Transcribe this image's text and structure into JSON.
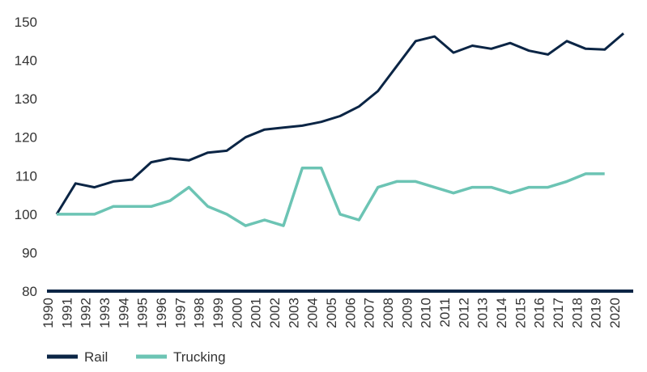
{
  "chart_data": {
    "type": "line",
    "x": [
      "1990",
      "1991",
      "1992",
      "1993",
      "1994",
      "1995",
      "1996",
      "1997",
      "1998",
      "1999",
      "2000",
      "2001",
      "2002",
      "2003",
      "2004",
      "2005",
      "2006",
      "2007",
      "2008",
      "2009",
      "2010",
      "2011",
      "2012",
      "2013",
      "2014",
      "2015",
      "2016",
      "2017",
      "2018",
      "2019",
      "2020"
    ],
    "ylim": [
      80,
      150
    ],
    "yticks": [
      80,
      90,
      100,
      110,
      120,
      130,
      140,
      150
    ],
    "grid": false,
    "legend_position": "bottom-left",
    "series": [
      {
        "name": "Rail",
        "color": "#0b2545",
        "values": [
          100,
          108,
          107,
          108.5,
          109,
          113.5,
          114.5,
          114,
          116,
          116.5,
          120,
          122,
          122.5,
          123,
          124,
          125.5,
          128,
          132,
          138.5,
          145,
          146.2,
          142,
          143.8,
          143,
          144.5,
          142.5,
          141.5,
          145,
          143,
          142.8,
          147
        ]
      },
      {
        "name": "Trucking",
        "color": "#6cc4b4",
        "values": [
          100,
          100,
          100,
          102,
          102,
          102,
          103.5,
          107,
          102,
          100,
          97,
          98.5,
          97,
          112,
          112,
          100,
          98.5,
          107,
          108.5,
          108.5,
          107,
          105.5,
          107,
          107,
          105.5,
          107,
          107,
          108.5,
          110.5,
          110.5,
          null
        ]
      }
    ]
  }
}
